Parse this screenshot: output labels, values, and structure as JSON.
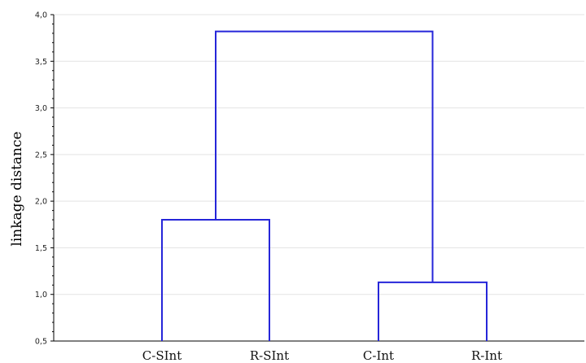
{
  "chart_data": {
    "type": "dendrogram",
    "ylabel": "linkage distance",
    "ylim": [
      0.5,
      4.0
    ],
    "yticks": [
      0.5,
      1.0,
      1.5,
      2.0,
      2.5,
      3.0,
      3.5,
      4.0
    ],
    "ytick_labels": [
      "0,5",
      "1,0",
      "1,5",
      "2,0",
      "2,5",
      "3,0",
      "3,5",
      "4,0"
    ],
    "grid": true,
    "leaves": [
      "C-SInt",
      "R-SInt",
      "C-Int",
      "R-Int"
    ],
    "merges": [
      {
        "left": "C-SInt",
        "right": "R-SInt",
        "height": 1.8
      },
      {
        "left": "C-Int",
        "right": "R-Int",
        "height": 1.13
      },
      {
        "left": "C-SInt+R-SInt",
        "right": "C-Int+R-Int",
        "height": 3.82
      }
    ],
    "line_color": "#2626d9"
  }
}
